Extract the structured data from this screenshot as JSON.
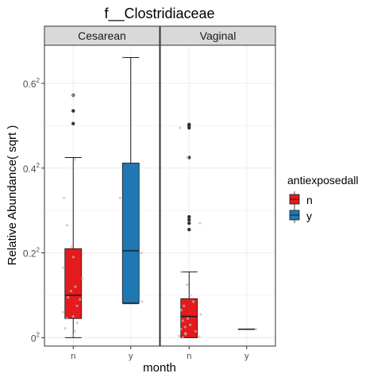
{
  "chart_data": {
    "type": "box",
    "title": "f__Clostridiaceae",
    "xlabel": "month",
    "ylabel": "Relative Abundance( sqrt )",
    "y_scale": "sqrt",
    "y_ticks": [
      {
        "value": 0.6,
        "label": "0.6",
        "sup": "2"
      },
      {
        "value": 0.4,
        "label": "0.4",
        "sup": "2"
      },
      {
        "value": 0.2,
        "label": "0.2",
        "sup": "2"
      },
      {
        "value": 0.0,
        "label": "0",
        "sup": "2"
      }
    ],
    "ylim": [
      -0.02,
      0.69
    ],
    "grid": true,
    "legend": {
      "title": "antiexposedall",
      "position": "right",
      "items": [
        {
          "key": "n",
          "label": "n",
          "color": "#E41A1C"
        },
        {
          "key": "y",
          "label": "y",
          "color": "#1F78B4"
        }
      ]
    },
    "panels": [
      {
        "name": "Cesarean",
        "categories": [
          "n",
          "y"
        ],
        "boxes": [
          {
            "category": "n",
            "group": "n",
            "whisker_low": 0.0,
            "q1": 0.045,
            "median": 0.1,
            "q3": 0.21,
            "whisker_high": 0.425,
            "outliers": [
              0.505,
              0.535,
              0.572
            ]
          },
          {
            "category": "y",
            "group": "y",
            "whisker_low": 0.08,
            "q1": 0.082,
            "median": 0.205,
            "q3": 0.412,
            "whisker_high": 0.661,
            "outliers": []
          }
        ],
        "jitter": [
          {
            "category": "n",
            "values": [
              0.572,
              0.42,
              0.33,
              0.265,
              0.215,
              0.19,
              0.165,
              0.14,
              0.12,
              0.11,
              0.095,
              0.09,
              0.075,
              0.06,
              0.05,
              0.045,
              0.035,
              0.022,
              0.015,
              0.005
            ]
          },
          {
            "category": "y",
            "values": [
              0.661,
              0.33,
              0.2,
              0.085
            ]
          }
        ]
      },
      {
        "name": "Vaginal",
        "categories": [
          "n",
          "y"
        ],
        "boxes": [
          {
            "category": "n",
            "group": "n",
            "whisker_low": 0.0,
            "q1": 0.0,
            "median": 0.05,
            "q3": 0.092,
            "whisker_high": 0.155,
            "outliers": [
              0.255,
              0.27,
              0.278,
              0.285,
              0.425,
              0.495,
              0.5,
              0.503
            ]
          },
          {
            "category": "y",
            "group": "y",
            "whisker_low": 0.02,
            "q1": 0.02,
            "median": 0.02,
            "q3": 0.02,
            "whisker_high": 0.02,
            "outliers": []
          }
        ],
        "jitter": [
          {
            "category": "n",
            "values": [
              0.495,
              0.425,
              0.27,
              0.155,
              0.125,
              0.1,
              0.085,
              0.075,
              0.065,
              0.055,
              0.045,
              0.04,
              0.03,
              0.025,
              0.02,
              0.015,
              0.01,
              0.008,
              0.004,
              0.002,
              0.0
            ]
          },
          {
            "category": "y",
            "values": [
              0.02
            ]
          }
        ]
      }
    ]
  }
}
